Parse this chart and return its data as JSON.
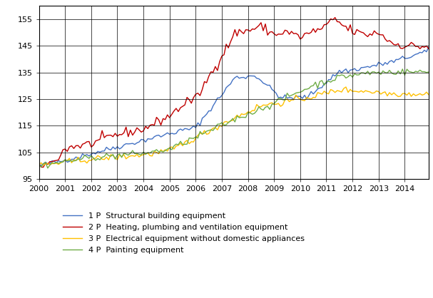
{
  "title": "",
  "ylabel": "",
  "xlabel": "",
  "xlim": [
    2000.0,
    2014.917
  ],
  "ylim": [
    95,
    160
  ],
  "yticks": [
    95,
    105,
    115,
    125,
    135,
    145,
    155
  ],
  "xticks": [
    2000,
    2001,
    2002,
    2003,
    2004,
    2005,
    2006,
    2007,
    2008,
    2009,
    2010,
    2011,
    2012,
    2013,
    2014
  ],
  "line_colors": [
    "#4472c4",
    "#c00000",
    "#ffc000",
    "#70ad47"
  ],
  "line_width": 1.0,
  "legend_labels": [
    "1 P  Structural building equipment",
    "2 P  Heating, plumbing and ventilation equipment",
    "3 P  Electrical equipment without domestic appliances",
    "4 P  Painting equipment"
  ],
  "background_color": "#ffffff",
  "grid_color": "#000000",
  "grid_linewidth": 0.5
}
